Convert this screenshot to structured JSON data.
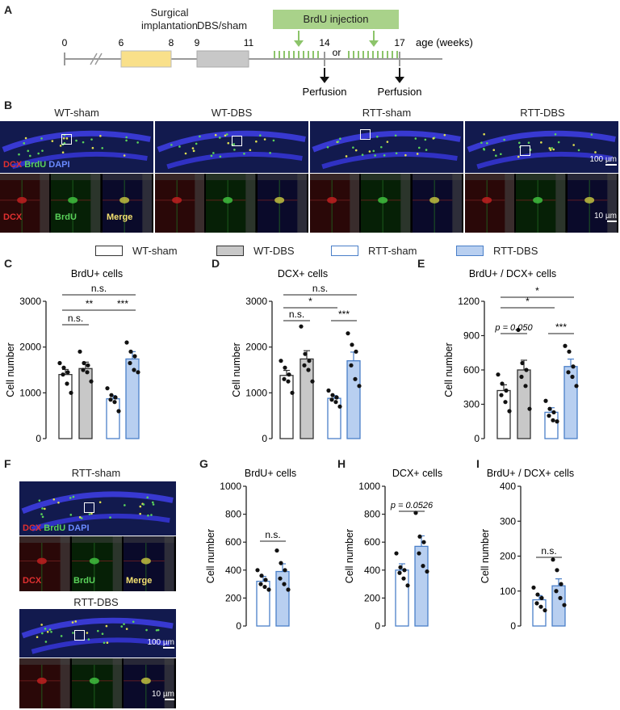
{
  "panels": {
    "A": "A",
    "B": "B",
    "C": "C",
    "D": "D",
    "E": "E",
    "F": "F",
    "G": "G",
    "H": "H",
    "I": "I"
  },
  "timeline": {
    "surgical_label_1": "Surgical",
    "surgical_label_2": "implantation",
    "dbs_label": "DBS/sham",
    "brdu_label": "BrdU injection",
    "ticks": [
      "0",
      "6",
      "8",
      "9",
      "11",
      "14",
      "17"
    ],
    "or_label": "or",
    "age_label": "age (weeks)",
    "perfusion_1": "Perfusion",
    "perfusion_2": "Perfusion"
  },
  "panel_b": {
    "titles": [
      "WT-sham",
      "WT-DBS",
      "RTT-sham",
      "RTT-DBS"
    ],
    "stain_dcx": "DCX",
    "stain_brdu": "BrdU",
    "stain_dapi": "DAPI",
    "inset_dcx": "DCX",
    "inset_brdu": "BrdU",
    "inset_merge": "Merge",
    "scale_100": "100 µm",
    "scale_10": "10 µm"
  },
  "legend": {
    "items": [
      "WT-sham",
      "WT-DBS",
      "RTT-sham",
      "RTT-DBS"
    ]
  },
  "panel_f": {
    "title_sham": "RTT-sham",
    "title_dbs": "RTT-DBS",
    "stain_dcx": "DCX",
    "stain_brdu": "BrdU",
    "stain_dapi": "DAPI",
    "inset_dcx": "DCX",
    "inset_brdu": "BrdU",
    "inset_merge": "Merge",
    "scale_100": "100 µm",
    "scale_10": "10 µm"
  },
  "colors": {
    "wt_sham": "#ffffff",
    "wt_dbs": "#c8c8c8",
    "rtt_sham": "#ffffff",
    "rtt_dbs": "#b8cff0",
    "rtt_edge": "#4a7fc8",
    "dapi": "#3a3ac8",
    "brdu": "#5ad25a",
    "dcx": "#e03030",
    "timeline_yellow": "#f9e08a",
    "timeline_gray": "#c8c8c8",
    "brdu_box": "#a9d28a"
  },
  "chart_data": [
    {
      "id": "C",
      "type": "bar",
      "title": "BrdU+ cells",
      "ylabel": "Cell number",
      "ylim": [
        0,
        3000
      ],
      "yticks": [
        0,
        1000,
        2000,
        3000
      ],
      "categories": [
        "WT-sham",
        "WT-DBS",
        "RTT-sham",
        "RTT-DBS"
      ],
      "values": [
        1400,
        1530,
        870,
        1740
      ],
      "errors": [
        110,
        140,
        70,
        160
      ],
      "points": [
        [
          1650,
          1550,
          1450,
          1400,
          1200,
          1000
        ],
        [
          1900,
          1650,
          1600,
          1500,
          1450,
          1250
        ],
        [
          1100,
          950,
          900,
          850,
          800,
          600
        ],
        [
          2100,
          1900,
          1800,
          1650,
          1500,
          1450
        ]
      ],
      "annotations": [
        {
          "from": 0,
          "to": 1,
          "text": "n.s.",
          "level": 0
        },
        {
          "from": 0,
          "to": 2,
          "text": "**",
          "level": 1
        },
        {
          "from": 2,
          "to": 3,
          "text": "***",
          "level": 1
        },
        {
          "from": 0,
          "to": 3,
          "text": "n.s.",
          "level": 2
        }
      ]
    },
    {
      "id": "D",
      "type": "bar",
      "title": "DCX+ cells",
      "ylabel": "Cell number",
      "ylim": [
        0,
        3000
      ],
      "yticks": [
        0,
        1000,
        2000,
        3000
      ],
      "categories": [
        "WT-sham",
        "WT-DBS",
        "RTT-sham",
        "RTT-DBS"
      ],
      "values": [
        1380,
        1740,
        880,
        1700
      ],
      "errors": [
        110,
        180,
        60,
        190
      ],
      "points": [
        [
          1700,
          1550,
          1400,
          1300,
          1250,
          1000
        ],
        [
          2450,
          1850,
          1700,
          1600,
          1500,
          1250
        ],
        [
          1050,
          950,
          900,
          850,
          800,
          700
        ],
        [
          2300,
          2050,
          1900,
          1600,
          1300,
          1150
        ]
      ],
      "annotations": [
        {
          "from": 0,
          "to": 1,
          "text": "n.s.",
          "level": 0
        },
        {
          "from": 2,
          "to": 3,
          "text": "***",
          "level": 0
        },
        {
          "from": 0,
          "to": 2,
          "text": "*",
          "level": 1
        },
        {
          "from": 0,
          "to": 3,
          "text": "n.s.",
          "level": 2
        }
      ]
    },
    {
      "id": "E",
      "type": "bar",
      "title": "BrdU+ / DCX+ cells",
      "ylabel": "Cell number",
      "ylim": [
        0,
        1200
      ],
      "yticks": [
        0,
        300,
        600,
        900,
        1200
      ],
      "categories": [
        "WT-sham",
        "WT-DBS",
        "RTT-sham",
        "RTT-DBS"
      ],
      "values": [
        420,
        600,
        230,
        630
      ],
      "errors": [
        50,
        85,
        40,
        65
      ],
      "points": [
        [
          560,
          480,
          420,
          380,
          320,
          240
        ],
        [
          950,
          660,
          600,
          540,
          460,
          260
        ],
        [
          330,
          260,
          230,
          200,
          160,
          150
        ],
        [
          810,
          760,
          630,
          580,
          540,
          460
        ]
      ],
      "annotations": [
        {
          "from": 2,
          "to": 3,
          "text": "***",
          "level": 0
        },
        {
          "from": 0,
          "to": 1,
          "text": "p = 0.050",
          "level": 0
        },
        {
          "from": 0,
          "to": 2,
          "text": "*",
          "level": 1
        },
        {
          "from": 0,
          "to": 3,
          "text": "*",
          "level": 2
        }
      ]
    },
    {
      "id": "G",
      "type": "bar",
      "title": "BrdU+ cells",
      "ylabel": "Cell number",
      "ylim": [
        0,
        1000
      ],
      "yticks": [
        0,
        200,
        400,
        600,
        800,
        1000
      ],
      "categories": [
        "RTT-sham",
        "RTT-DBS"
      ],
      "values": [
        320,
        390
      ],
      "errors": [
        35,
        55
      ],
      "points": [
        [
          400,
          360,
          330,
          300,
          280,
          260
        ],
        [
          540,
          450,
          400,
          340,
          300,
          260
        ]
      ],
      "annotations": [
        {
          "from": 0,
          "to": 1,
          "text": "n.s.",
          "level": 0
        }
      ]
    },
    {
      "id": "H",
      "type": "bar",
      "title": "DCX+ cells",
      "ylabel": "Cell number",
      "ylim": [
        0,
        1000
      ],
      "yticks": [
        0,
        200,
        400,
        600,
        800,
        1000
      ],
      "categories": [
        "RTT-sham",
        "RTT-DBS"
      ],
      "values": [
        400,
        570
      ],
      "errors": [
        45,
        75
      ],
      "points": [
        [
          520,
          420,
          400,
          380,
          340,
          290
        ],
        [
          810,
          640,
          600,
          520,
          430,
          390
        ]
      ],
      "annotations": [
        {
          "from": 0,
          "to": 1,
          "text": "p = 0.0526",
          "level": 0
        }
      ]
    },
    {
      "id": "I",
      "type": "bar",
      "title": "BrdU+ / DCX+ cells",
      "ylabel": "Cell number",
      "ylim": [
        0,
        400
      ],
      "yticks": [
        0,
        100,
        200,
        300,
        400
      ],
      "categories": [
        "RTT-sham",
        "RTT-DBS"
      ],
      "values": [
        75,
        115
      ],
      "errors": [
        12,
        20
      ],
      "points": [
        [
          110,
          90,
          80,
          65,
          55,
          45
        ],
        [
          190,
          160,
          120,
          100,
          80,
          60
        ]
      ],
      "annotations": [
        {
          "from": 0,
          "to": 1,
          "text": "n.s.",
          "level": 0
        }
      ]
    }
  ]
}
